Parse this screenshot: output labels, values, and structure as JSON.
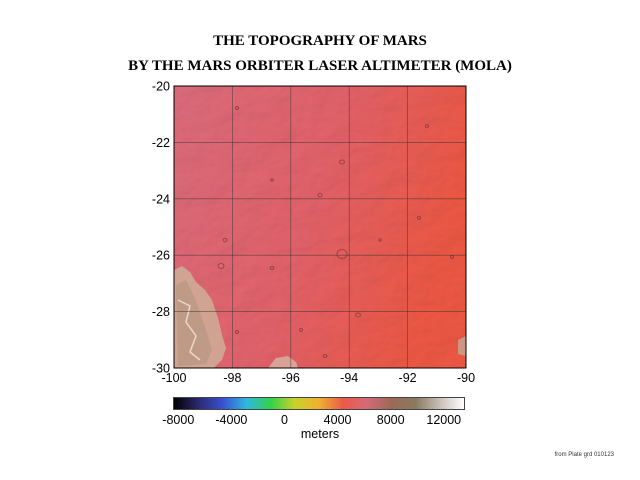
{
  "title": {
    "line1": "THE TOPOGRAPHY OF MARS",
    "line2": "BY THE MARS ORBITER LASER ALTIMETER (MOLA)"
  },
  "map": {
    "lon_range": [
      -100,
      -90
    ],
    "lat_range": [
      -30,
      -20
    ],
    "x_ticks": [
      {
        "value": -100,
        "label": "-100"
      },
      {
        "value": -98,
        "label": "-98"
      },
      {
        "value": -96,
        "label": "-96"
      },
      {
        "value": -94,
        "label": "-94"
      },
      {
        "value": -92,
        "label": "-92"
      },
      {
        "value": -90,
        "label": "-90"
      }
    ],
    "y_ticks": [
      {
        "value": -20,
        "label": "-20"
      },
      {
        "value": -22,
        "label": "-22"
      },
      {
        "value": -24,
        "label": "-24"
      },
      {
        "value": -26,
        "label": "-26"
      },
      {
        "value": -28,
        "label": "-28"
      },
      {
        "value": -30,
        "label": "-30"
      }
    ],
    "colors": {
      "base_left": "#dc6a7a",
      "base_right": "#ec5a48",
      "highland": "#c9a68c",
      "grid": "#333333"
    }
  },
  "colorbar": {
    "labels": [
      {
        "value": -8000,
        "label": "-8000"
      },
      {
        "value": -4000,
        "label": "-4000"
      },
      {
        "value": 0,
        "label": "0"
      },
      {
        "value": 4000,
        "label": "4000"
      },
      {
        "value": 8000,
        "label": "8000"
      },
      {
        "value": 12000,
        "label": "12000"
      }
    ],
    "range": [
      -8400,
      13600
    ],
    "unit": "meters",
    "stops": [
      "#000000",
      "#2a2a6e",
      "#3a4fd0",
      "#2fb8e0",
      "#33d24a",
      "#c8d22a",
      "#f0b030",
      "#ea5a48",
      "#d46a78",
      "#9a6a55",
      "#8a7a62",
      "#c8c0b8",
      "#ffffff"
    ]
  },
  "credit": "from Plate grd 010123"
}
